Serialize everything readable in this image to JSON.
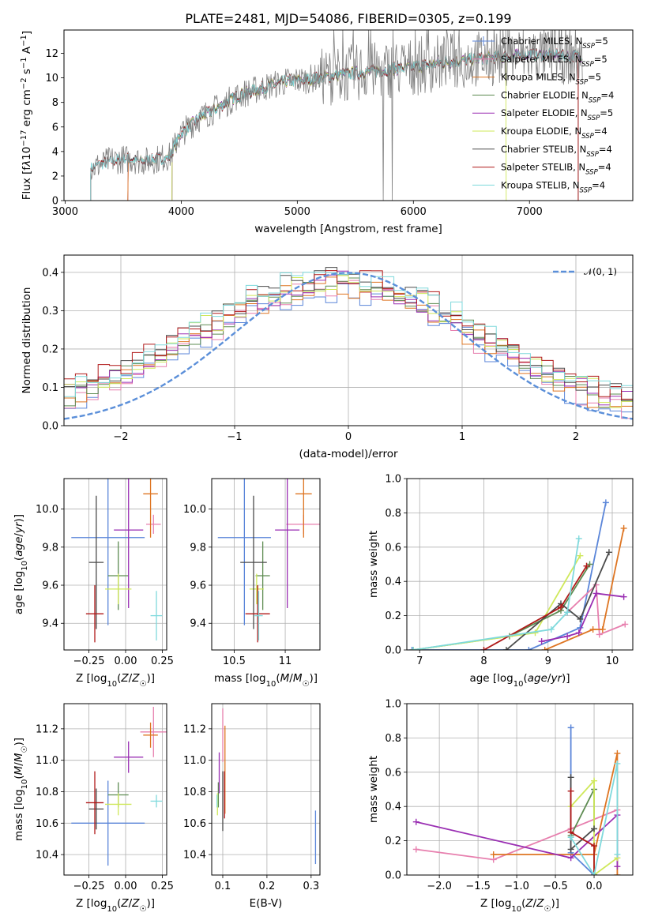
{
  "figure": {
    "title": "PLATE=2481, MJD=54086, FIBERID=0305, z=0.199"
  },
  "colors": {
    "Chabrier MILES": "#5b86d9",
    "Salpeter MILES": "#e77fae",
    "Kroupa MILES": "#de7522",
    "Chabrier ELODIE": "#5e8c52",
    "Salpeter ELODIE": "#9a2fb3",
    "Kroupa ELODIE": "#cfe85a",
    "Chabrier STELIB": "#4b4b4b",
    "Salpeter STELIB": "#b01818",
    "Kroupa STELIB": "#7fd9dc",
    "data": "#808080",
    "normal": "#5b8fd9"
  },
  "chart_data": [
    {
      "id": "spectrum",
      "type": "line",
      "xlabel": "wavelength [Angstrom, rest frame]",
      "ylabel": "Flux [f_λ10^-17 erg cm^-2 s^-1 A^-1]",
      "xlim": [
        2990,
        7890
      ],
      "ylim": [
        0,
        13.9
      ],
      "xticks": [
        3000,
        4000,
        5000,
        6000,
        7000
      ],
      "yticks": [
        0,
        2,
        4,
        6,
        8,
        10,
        12
      ],
      "legend_loc": "upper right",
      "legend": [
        {
          "label": "Chabrier MILES, N",
          "sub": "SSP",
          "suffix": "=5"
        },
        {
          "label": "Salpeter MILES, N",
          "sub": "SSP",
          "suffix": "=5"
        },
        {
          "label": "Kroupa MILES, N",
          "sub": "SSP",
          "suffix": "=5"
        },
        {
          "label": "Chabrier ELODIE, N",
          "sub": "SSP",
          "suffix": "=4"
        },
        {
          "label": "Salpeter ELODIE, N",
          "sub": "SSP",
          "suffix": "=5"
        },
        {
          "label": "Kroupa ELODIE, N",
          "sub": "SSP",
          "suffix": "=4"
        },
        {
          "label": "Chabrier STELIB, N",
          "sub": "SSP",
          "suffix": "=4"
        },
        {
          "label": "Salpeter STELIB, N",
          "sub": "SSP",
          "suffix": "=4"
        },
        {
          "label": "Kroupa STELIB, N",
          "sub": "SSP",
          "suffix": "=4"
        }
      ],
      "continuum": [
        [
          3220,
          2.6
        ],
        [
          3400,
          3.3
        ],
        [
          3550,
          3.4
        ],
        [
          3700,
          3.2
        ],
        [
          3900,
          3.6
        ],
        [
          4000,
          5.5
        ],
        [
          4150,
          6.7
        ],
        [
          4300,
          7.5
        ],
        [
          4500,
          8.6
        ],
        [
          4700,
          9.2
        ],
        [
          4900,
          9.7
        ],
        [
          5100,
          9.9
        ],
        [
          5400,
          10.3
        ],
        [
          5700,
          10.6
        ],
        [
          6000,
          10.9
        ],
        [
          6300,
          11.3
        ],
        [
          6600,
          11.6
        ],
        [
          7000,
          11.9
        ],
        [
          7300,
          11.8
        ],
        [
          7450,
          11.8
        ]
      ],
      "model_starts": [
        {
          "model": "Chabrier MILES",
          "x": 3540
        },
        {
          "model": "Salpeter MILES",
          "x": 3540
        },
        {
          "model": "Kroupa MILES",
          "x": 3540
        },
        {
          "model": "Chabrier ELODIE",
          "x": 3920
        },
        {
          "model": "Salpeter ELODIE",
          "x": 3920
        },
        {
          "model": "Kroupa ELODIE",
          "x": 3920
        },
        {
          "model": "Chabrier STELIB",
          "x": 3220
        },
        {
          "model": "Salpeter STELIB",
          "x": 3220
        },
        {
          "model": "Kroupa STELIB",
          "x": 3220
        }
      ],
      "model_ends": [
        {
          "model": "Kroupa ELODIE",
          "x": 6800
        },
        {
          "model": "Chabrier STELIB",
          "x": 7420
        },
        {
          "model": "Salpeter STELIB",
          "x": 7420
        }
      ],
      "data_dips": [
        5740,
        5820
      ]
    },
    {
      "id": "residuals",
      "type": "histogram",
      "xlabel": "(data-model)/error",
      "ylabel": "Normed distribution",
      "xlim": [
        -2.5,
        2.5
      ],
      "ylim": [
        0,
        0.445
      ],
      "xticks": [
        -2,
        -1,
        0,
        1,
        2
      ],
      "yticks": [
        0.0,
        0.1,
        0.2,
        0.3,
        0.4
      ],
      "bin_width": 0.1,
      "legend_loc": "upper right",
      "legend": [
        {
          "label": "𝒩(0, 1)",
          "series": "normal"
        }
      ]
    },
    {
      "id": "age_vs_Z",
      "type": "errorbar",
      "xlabel": "Z [log10(Z/Z☉)]",
      "ylabel": "age  [log10(age/yr)]",
      "xlim": [
        -0.42,
        0.28
      ],
      "ylim": [
        9.26,
        10.16
      ],
      "xticks": [
        -0.25,
        0.0,
        0.25
      ],
      "xtick_labels": [
        "−0.25",
        "0.00",
        "0.25"
      ],
      "yticks": [
        9.4,
        9.6,
        9.8,
        10.0
      ],
      "points": [
        {
          "model": "Chabrier MILES",
          "x": -0.12,
          "y": 9.85,
          "xerr": 0.25,
          "yerr": 0.46
        },
        {
          "model": "Salpeter MILES",
          "x": 0.19,
          "y": 9.92,
          "xerr": 0.05,
          "yerr": 0.05
        },
        {
          "model": "Kroupa MILES",
          "x": 0.17,
          "y": 10.08,
          "xerr": 0.05,
          "yerr": 0.23
        },
        {
          "model": "Chabrier ELODIE",
          "x": -0.05,
          "y": 9.65,
          "xerr": 0.07,
          "yerr": 0.18
        },
        {
          "model": "Salpeter ELODIE",
          "x": 0.02,
          "y": 9.89,
          "xerr": 0.1,
          "yerr": 0.41
        },
        {
          "model": "Kroupa ELODIE",
          "x": -0.05,
          "y": 9.58,
          "xerr": 0.09,
          "yerr": 0.08
        },
        {
          "model": "Chabrier STELIB",
          "x": -0.2,
          "y": 9.72,
          "xerr": 0.05,
          "yerr": 0.35
        },
        {
          "model": "Salpeter STELIB",
          "x": -0.21,
          "y": 9.45,
          "xerr": 0.06,
          "yerr": 0.15
        },
        {
          "model": "Kroupa STELIB",
          "x": 0.21,
          "y": 9.44,
          "xerr": 0.04,
          "yerr": 0.13
        }
      ]
    },
    {
      "id": "age_vs_mass",
      "type": "errorbar",
      "xlabel": "mass [log10(M/M☉)]",
      "ylabel": "",
      "xlim": [
        10.28,
        11.34
      ],
      "ylim": [
        9.26,
        10.16
      ],
      "xticks": [
        10.5,
        11.0
      ],
      "yticks": [
        9.4,
        9.6,
        9.8,
        10.0
      ],
      "points": [
        {
          "model": "Chabrier MILES",
          "x": 10.6,
          "y": 9.85,
          "xerr": 0.26,
          "yerr": 0.46
        },
        {
          "model": "Salpeter MILES",
          "x": 11.18,
          "y": 9.92,
          "xerr": 0.17,
          "yerr": 0.05
        },
        {
          "model": "Kroupa MILES",
          "x": 11.18,
          "y": 10.08,
          "xerr": 0.08,
          "yerr": 0.23
        },
        {
          "model": "Chabrier ELODIE",
          "x": 10.78,
          "y": 9.65,
          "xerr": 0.07,
          "yerr": 0.18
        },
        {
          "model": "Salpeter ELODIE",
          "x": 11.02,
          "y": 9.89,
          "xerr": 0.12,
          "yerr": 0.41
        },
        {
          "model": "Kroupa ELODIE",
          "x": 10.72,
          "y": 9.58,
          "xerr": 0.07,
          "yerr": 0.08
        },
        {
          "model": "Chabrier STELIB",
          "x": 10.69,
          "y": 9.72,
          "xerr": 0.13,
          "yerr": 0.35
        },
        {
          "model": "Salpeter STELIB",
          "x": 10.73,
          "y": 9.45,
          "xerr": 0.12,
          "yerr": 0.15
        },
        {
          "model": "Kroupa STELIB",
          "x": 10.74,
          "y": 9.44,
          "xerr": 0.04,
          "yerr": 0.13
        }
      ]
    },
    {
      "id": "mass_vs_Z",
      "type": "errorbar",
      "xlabel": "Z [log10(Z/Z☉)]",
      "ylabel": "mass [log10(M/M☉)]",
      "xlim": [
        -0.42,
        0.28
      ],
      "ylim": [
        10.27,
        11.36
      ],
      "xticks": [
        -0.25,
        0.0,
        0.25
      ],
      "xtick_labels": [
        "−0.25",
        "0.00",
        "0.25"
      ],
      "yticks": [
        10.4,
        10.6,
        10.8,
        11.0,
        11.2
      ],
      "points": [
        {
          "model": "Chabrier MILES",
          "x": -0.12,
          "y": 10.6,
          "xerr": 0.25,
          "yerr": 0.27
        },
        {
          "model": "Salpeter MILES",
          "x": 0.19,
          "y": 11.18,
          "xerr": 0.09,
          "yerr": 0.16
        },
        {
          "model": "Kroupa MILES",
          "x": 0.17,
          "y": 11.16,
          "xerr": 0.05,
          "yerr": 0.08
        },
        {
          "model": "Chabrier ELODIE",
          "x": -0.05,
          "y": 10.78,
          "xerr": 0.07,
          "yerr": 0.08
        },
        {
          "model": "Salpeter ELODIE",
          "x": 0.02,
          "y": 11.02,
          "xerr": 0.1,
          "yerr": 0.1
        },
        {
          "model": "Kroupa ELODIE",
          "x": -0.05,
          "y": 10.72,
          "xerr": 0.09,
          "yerr": 0.07
        },
        {
          "model": "Chabrier STELIB",
          "x": -0.2,
          "y": 10.69,
          "xerr": 0.05,
          "yerr": 0.13
        },
        {
          "model": "Salpeter STELIB",
          "x": -0.21,
          "y": 10.73,
          "xerr": 0.06,
          "yerr": 0.2
        },
        {
          "model": "Kroupa STELIB",
          "x": 0.21,
          "y": 10.74,
          "xerr": 0.04,
          "yerr": 0.04
        }
      ]
    },
    {
      "id": "mass_vs_EBV",
      "type": "errorbar",
      "xlabel": "E(B-V)",
      "ylabel": "",
      "xlim": [
        0.075,
        0.32
      ],
      "ylim": [
        10.27,
        11.36
      ],
      "xticks": [
        0.1,
        0.2,
        0.3
      ],
      "yticks": [
        10.4,
        10.6,
        10.8,
        11.0,
        11.2
      ],
      "points": [
        {
          "model": "Chabrier MILES",
          "x": 0.31,
          "y": 10.51,
          "xerr": 0.0,
          "yerr": 0.17
        },
        {
          "model": "Salpeter MILES",
          "x": 0.1,
          "y": 11.16,
          "xerr": 0.0,
          "yerr": 0.17
        },
        {
          "model": "Kroupa MILES",
          "x": 0.105,
          "y": 10.94,
          "xerr": 0.0,
          "yerr": 0.28
        },
        {
          "model": "Chabrier ELODIE",
          "x": 0.09,
          "y": 10.78,
          "xerr": 0.0,
          "yerr": 0.08
        },
        {
          "model": "Salpeter ELODIE",
          "x": 0.092,
          "y": 10.92,
          "xerr": 0.0,
          "yerr": 0.13
        },
        {
          "model": "Kroupa ELODIE",
          "x": 0.088,
          "y": 10.72,
          "xerr": 0.0,
          "yerr": 0.07
        },
        {
          "model": "Chabrier STELIB",
          "x": 0.1,
          "y": 10.74,
          "xerr": 0.0,
          "yerr": 0.19
        },
        {
          "model": "Salpeter STELIB",
          "x": 0.104,
          "y": 10.78,
          "xerr": 0.0,
          "yerr": 0.15
        },
        {
          "model": "Kroupa STELIB",
          "x": 0.087,
          "y": 10.74,
          "xerr": 0.0,
          "yerr": 0.04
        }
      ]
    },
    {
      "id": "weight_vs_age",
      "type": "line",
      "xlabel": "age  [log10(age/yr)]",
      "ylabel": "mass weight",
      "xlim": [
        6.8,
        10.32
      ],
      "ylim": [
        0.0,
        1.0
      ],
      "xticks": [
        7,
        8,
        9,
        10
      ],
      "yticks": [
        0.0,
        0.2,
        0.4,
        0.6,
        0.8,
        1.0
      ],
      "series": [
        {
          "model": "Chabrier MILES",
          "points": [
            [
              6.88,
              0.0
            ],
            [
              8.7,
              0.0
            ],
            [
              9.5,
              0.13
            ],
            [
              9.9,
              0.86
            ]
          ]
        },
        {
          "model": "Salpeter MILES",
          "points": [
            [
              9.3,
              0.22
            ],
            [
              9.75,
              0.38
            ],
            [
              9.8,
              0.09
            ],
            [
              10.2,
              0.15
            ]
          ]
        },
        {
          "model": "Kroupa MILES",
          "points": [
            [
              8.95,
              0.0
            ],
            [
              9.7,
              0.12
            ],
            [
              9.85,
              0.12
            ],
            [
              10.18,
              0.71
            ]
          ]
        },
        {
          "model": "Chabrier ELODIE",
          "points": [
            [
              6.9,
              0.0
            ],
            [
              8.4,
              0.08
            ],
            [
              9.2,
              0.23
            ],
            [
              9.65,
              0.5
            ]
          ]
        },
        {
          "model": "Salpeter ELODIE",
          "points": [
            [
              8.9,
              0.05
            ],
            [
              9.3,
              0.08
            ],
            [
              9.48,
              0.1
            ],
            [
              9.75,
              0.33
            ],
            [
              10.18,
              0.31
            ]
          ]
        },
        {
          "model": "Kroupa ELODIE",
          "points": [
            [
              6.9,
              0.0
            ],
            [
              8.8,
              0.1
            ],
            [
              9.5,
              0.55
            ]
          ]
        },
        {
          "model": "Chabrier STELIB",
          "points": [
            [
              8.35,
              0.0
            ],
            [
              9.2,
              0.27
            ],
            [
              9.5,
              0.18
            ],
            [
              9.95,
              0.57
            ]
          ]
        },
        {
          "model": "Salpeter STELIB",
          "points": [
            [
              8.0,
              0.0
            ],
            [
              9.2,
              0.25
            ],
            [
              9.6,
              0.49
            ]
          ]
        },
        {
          "model": "Kroupa STELIB",
          "points": [
            [
              6.9,
              0.0
            ],
            [
              9.05,
              0.12
            ],
            [
              9.3,
              0.22
            ],
            [
              9.48,
              0.65
            ]
          ]
        }
      ]
    },
    {
      "id": "weight_vs_Z",
      "type": "line",
      "xlabel": "Z [log10(Z/Z☉)]",
      "ylabel": "mass weight",
      "xlim": [
        -2.42,
        0.5
      ],
      "ylim": [
        0.0,
        1.0
      ],
      "xticks": [
        -2.0,
        -1.5,
        -1.0,
        -0.5,
        0.0
      ],
      "xtick_labels": [
        "−2.0",
        "−1.5",
        "−1.0",
        "−0.5",
        "0.0"
      ],
      "yticks": [
        0.0,
        0.2,
        0.4,
        0.6,
        0.8,
        1.0
      ],
      "series": [
        {
          "model": "Chabrier MILES",
          "points": [
            [
              -0.3,
              0.86
            ],
            [
              -0.3,
              0.13
            ],
            [
              0.0,
              0.0
            ],
            [
              0.0,
              0.01
            ]
          ]
        },
        {
          "model": "Salpeter MILES",
          "points": [
            [
              -2.3,
              0.15
            ],
            [
              -1.3,
              0.09
            ],
            [
              -0.3,
              0.27
            ],
            [
              0.3,
              0.38
            ]
          ]
        },
        {
          "model": "Kroupa MILES",
          "points": [
            [
              -1.3,
              0.12
            ],
            [
              0.0,
              0.12
            ],
            [
              0.3,
              0.71
            ],
            [
              0.3,
              0.0
            ]
          ]
        },
        {
          "model": "Chabrier ELODIE",
          "points": [
            [
              -0.3,
              0.23
            ],
            [
              0.0,
              0.5
            ],
            [
              0.0,
              0.27
            ]
          ]
        },
        {
          "model": "Salpeter ELODIE",
          "points": [
            [
              -2.3,
              0.31
            ],
            [
              -0.3,
              0.1
            ],
            [
              0.3,
              0.35
            ],
            [
              0.3,
              0.05
            ]
          ]
        },
        {
          "model": "Kroupa ELODIE",
          "points": [
            [
              -0.3,
              0.4
            ],
            [
              0.0,
              0.55
            ],
            [
              0.0,
              0.0
            ],
            [
              0.3,
              0.1
            ]
          ]
        },
        {
          "model": "Chabrier STELIB",
          "points": [
            [
              -0.3,
              0.57
            ],
            [
              -0.3,
              0.15
            ],
            [
              0.0,
              0.27
            ]
          ]
        },
        {
          "model": "Salpeter STELIB",
          "points": [
            [
              -0.3,
              0.49
            ],
            [
              -0.3,
              0.25
            ],
            [
              0.0,
              0.17
            ],
            [
              0.0,
              0.0
            ]
          ]
        },
        {
          "model": "Kroupa STELIB",
          "points": [
            [
              -0.3,
              0.22
            ],
            [
              0.0,
              0.0
            ],
            [
              0.3,
              0.65
            ],
            [
              0.3,
              0.12
            ]
          ]
        }
      ]
    }
  ]
}
